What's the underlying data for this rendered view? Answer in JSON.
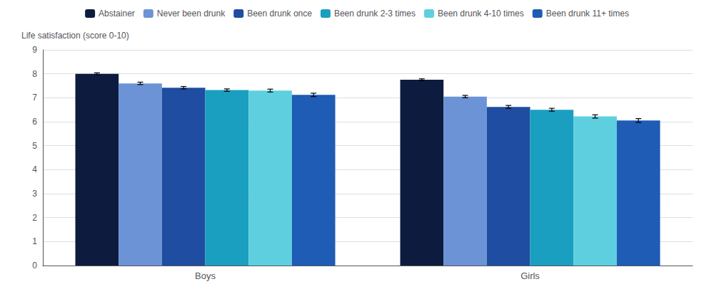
{
  "chart_data": {
    "type": "bar",
    "ylabel": "Life satisfaction (score 0-10)",
    "categories": [
      "Boys",
      "Girls"
    ],
    "series": [
      {
        "name": "Abstainer",
        "color": "#0d1b3e",
        "values": [
          8.0,
          7.75
        ],
        "errors": [
          0.04,
          0.04
        ]
      },
      {
        "name": "Never been drunk",
        "color": "#6b93d6",
        "values": [
          7.6,
          7.05
        ],
        "errors": [
          0.05,
          0.05
        ]
      },
      {
        "name": "Been drunk once",
        "color": "#1e4da1",
        "values": [
          7.42,
          6.62
        ],
        "errors": [
          0.05,
          0.06
        ]
      },
      {
        "name": "Been drunk 2-3 times",
        "color": "#1a9fc0",
        "values": [
          7.32,
          6.5
        ],
        "errors": [
          0.05,
          0.06
        ]
      },
      {
        "name": "Been drunk 4-10 times",
        "color": "#5ecfdf",
        "values": [
          7.3,
          6.22
        ],
        "errors": [
          0.06,
          0.07
        ]
      },
      {
        "name": "Been drunk 11+ times",
        "color": "#1e5cb5",
        "values": [
          7.12,
          6.05
        ],
        "errors": [
          0.07,
          0.08
        ]
      }
    ],
    "ylim": [
      0,
      9
    ],
    "yticks": [
      0,
      1,
      2,
      3,
      4,
      5,
      6,
      7,
      8,
      9
    ],
    "grid": true,
    "legend": "top"
  }
}
